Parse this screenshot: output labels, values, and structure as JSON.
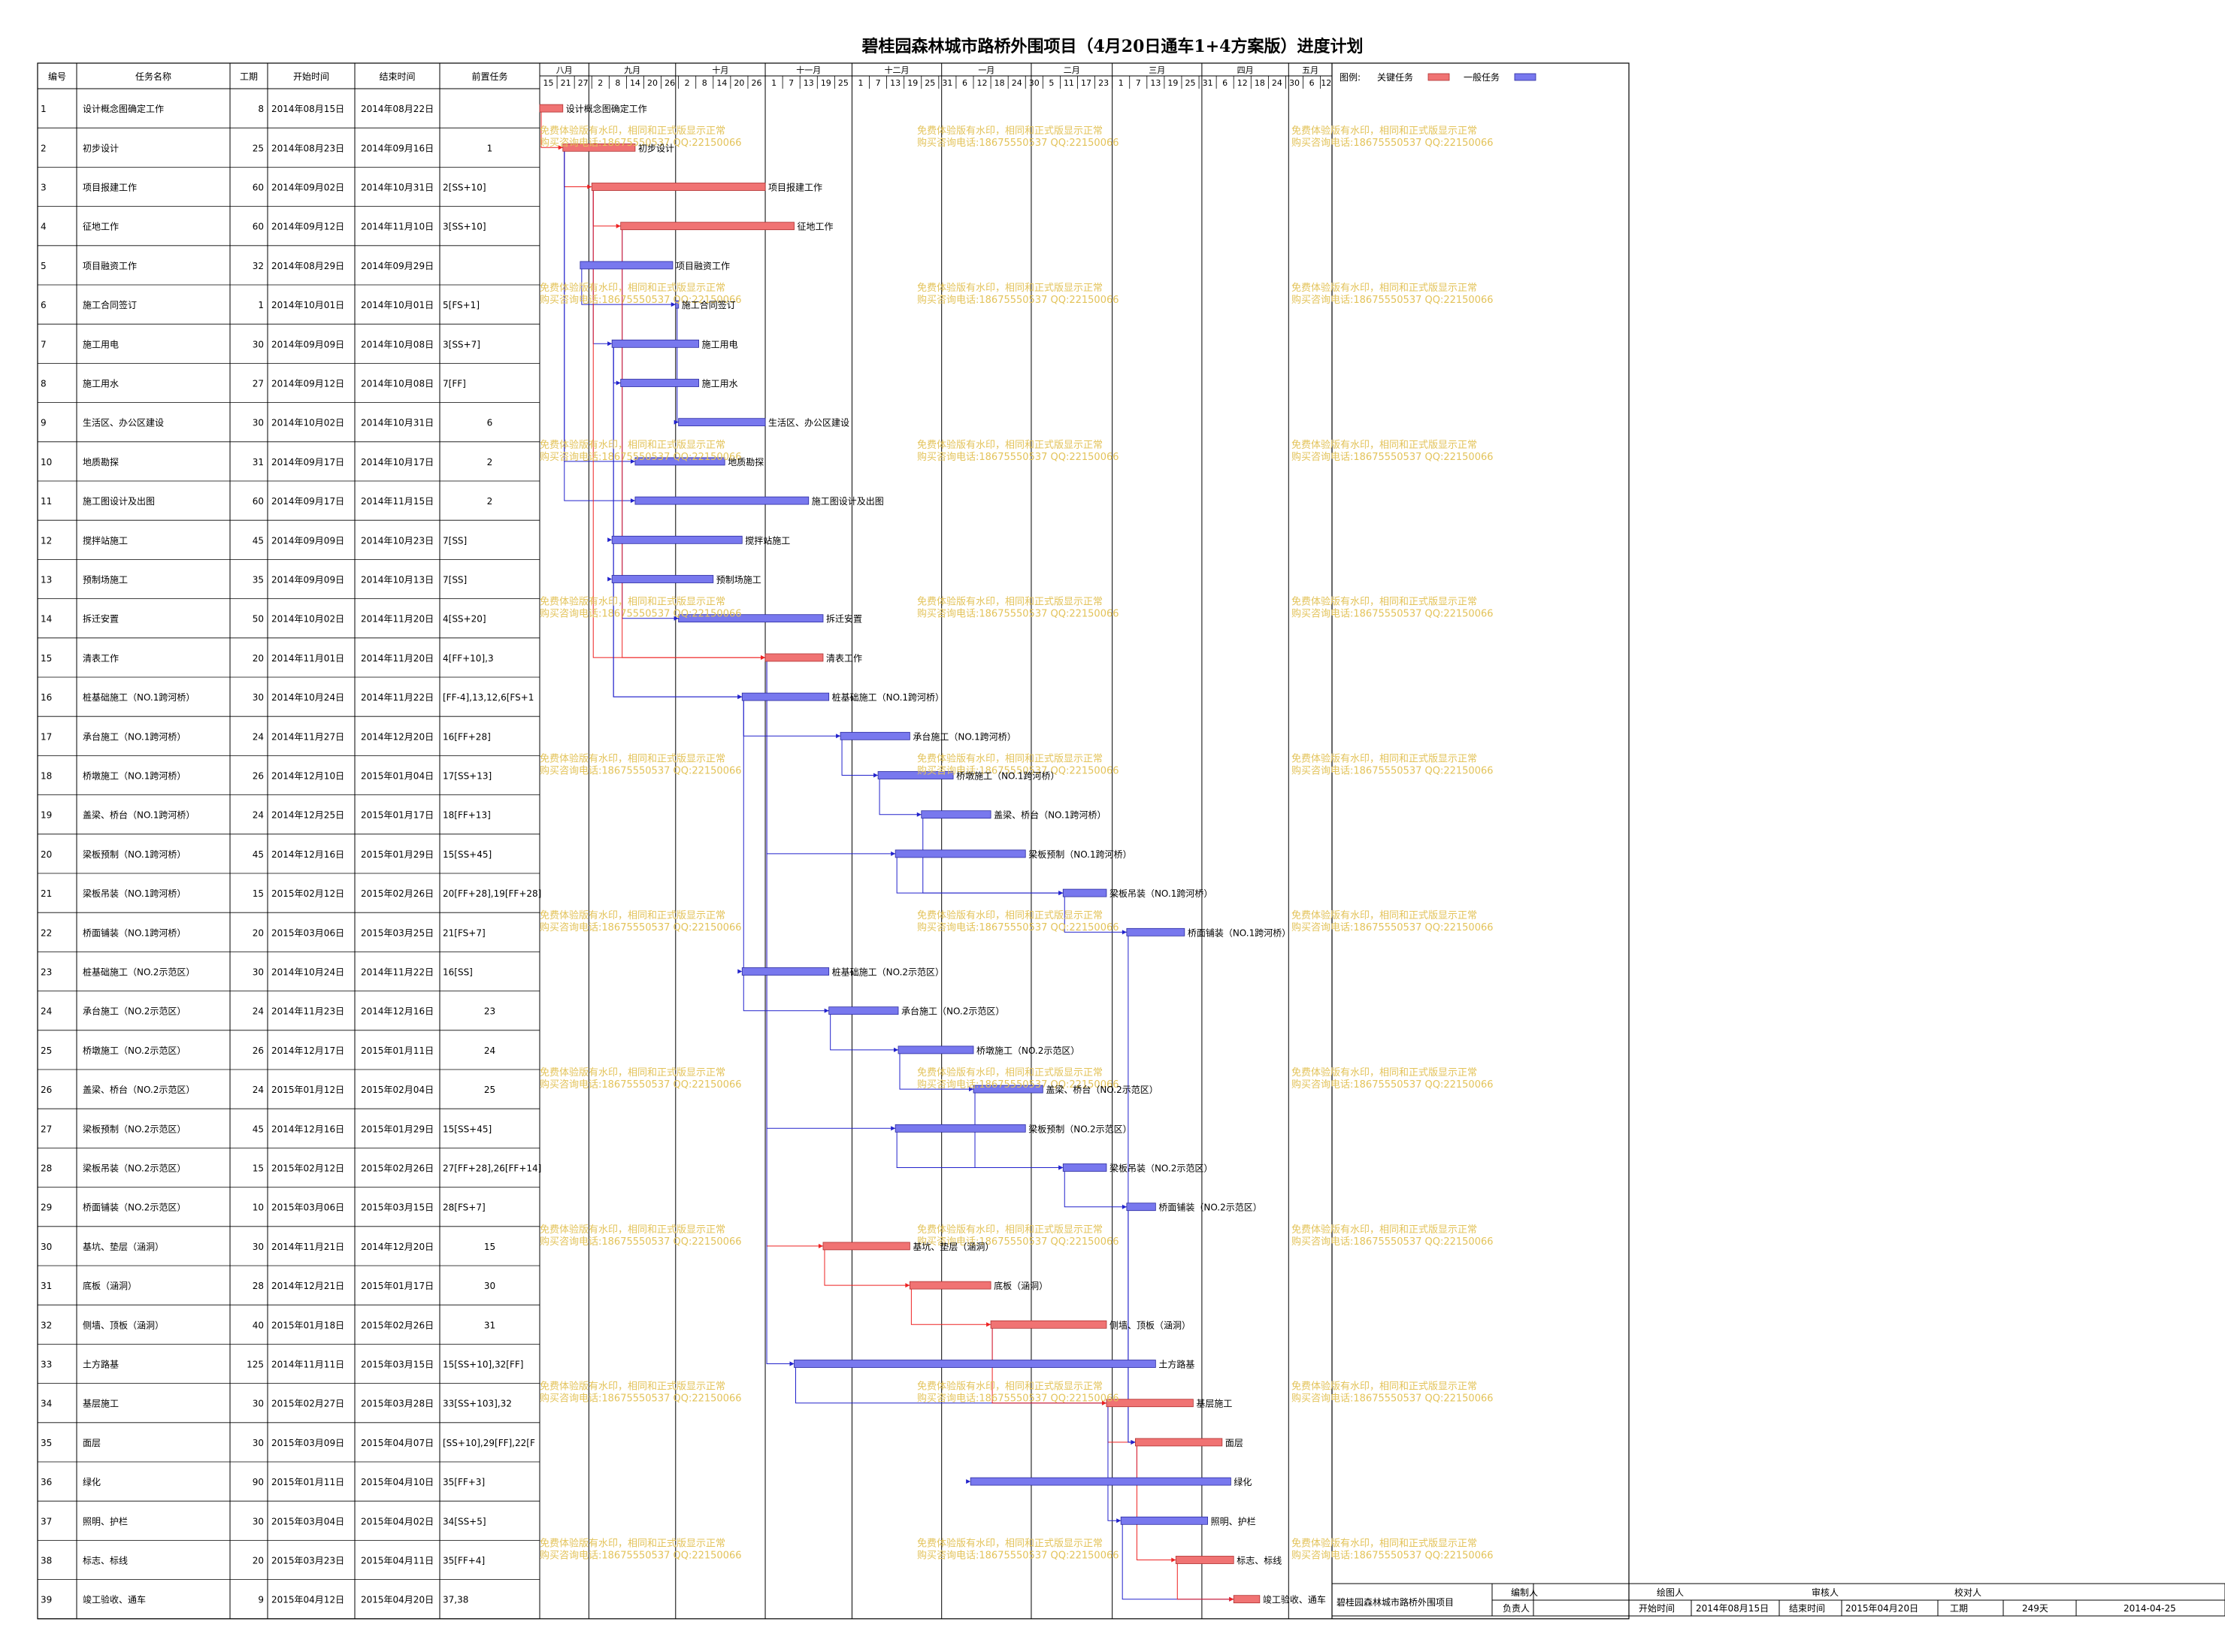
{
  "title": "碧桂园森林城市路桥外围项目（4月20日通车1+4方案版）进度计划",
  "table": {
    "headers": [
      "编号",
      "任务名称",
      "工期",
      "开始时间",
      "结束时间",
      "前置任务"
    ]
  },
  "legend": {
    "label": "图例:",
    "critical": "关键任务",
    "normal": "一般任务",
    "critical_color": "#f07373",
    "normal_color": "#7878ee"
  },
  "colors": {
    "critical": "#f07373",
    "normal": "#7878ee",
    "link_critical": "#ee2222",
    "link_normal": "#2222cc",
    "watermark": "#e3c35a"
  },
  "timeline": {
    "months": [
      "八月",
      "九月",
      "十月",
      "十一月",
      "十二月",
      "一月",
      "二月",
      "三月",
      "四月",
      "五月"
    ],
    "ticks": [
      "15",
      "21",
      "27",
      "2",
      "8",
      "14",
      "20",
      "26",
      "2",
      "8",
      "14",
      "20",
      "26",
      "1",
      "7",
      "13",
      "19",
      "25",
      "1",
      "7",
      "13",
      "19",
      "25",
      "31",
      "6",
      "12",
      "18",
      "24",
      "30",
      "5",
      "11",
      "17",
      "23",
      "1",
      "7",
      "13",
      "19",
      "25",
      "31",
      "6",
      "12",
      "18",
      "24",
      "30",
      "6",
      "12"
    ]
  },
  "watermark": {
    "line1": "免费体验版有水印，相同和正式版显示正常",
    "line2": "购买咨询电话:18675550537 QQ:22150066"
  },
  "chart_data": {
    "type": "gantt",
    "title": "碧桂园森林城市路桥外围项目（4月20日通车1+4方案版）进度计划",
    "x_range": [
      "2014-08-15",
      "2015-05-16"
    ],
    "tasks": [
      {
        "id": "1",
        "name": "设计概念图确定工作",
        "duration": "8",
        "start": "2014年08月15日",
        "end": "2014年08月22日",
        "pred": "",
        "critical": true,
        "s": "2014-08-15",
        "e": "2014-08-22"
      },
      {
        "id": "2",
        "name": "初步设计",
        "duration": "25",
        "start": "2014年08月23日",
        "end": "2014年09月16日",
        "pred": "1",
        "critical": true,
        "s": "2014-08-23",
        "e": "2014-09-16"
      },
      {
        "id": "3",
        "name": "项目报建工作",
        "duration": "60",
        "start": "2014年09月02日",
        "end": "2014年10月31日",
        "pred": "2[SS+10]",
        "critical": true,
        "s": "2014-09-02",
        "e": "2014-10-31"
      },
      {
        "id": "4",
        "name": "征地工作",
        "duration": "60",
        "start": "2014年09月12日",
        "end": "2014年11月10日",
        "pred": "3[SS+10]",
        "critical": true,
        "s": "2014-09-12",
        "e": "2014-11-10"
      },
      {
        "id": "5",
        "name": "项目融资工作",
        "duration": "32",
        "start": "2014年08月29日",
        "end": "2014年09月29日",
        "pred": "",
        "critical": false,
        "s": "2014-08-29",
        "e": "2014-09-29"
      },
      {
        "id": "6",
        "name": "施工合同签订",
        "duration": "1",
        "start": "2014年10月01日",
        "end": "2014年10月01日",
        "pred": "5[FS+1]",
        "critical": false,
        "s": "2014-10-01",
        "e": "2014-10-01"
      },
      {
        "id": "7",
        "name": "施工用电",
        "duration": "30",
        "start": "2014年09月09日",
        "end": "2014年10月08日",
        "pred": "3[SS+7]",
        "critical": false,
        "s": "2014-09-09",
        "e": "2014-10-08"
      },
      {
        "id": "8",
        "name": "施工用水",
        "duration": "27",
        "start": "2014年09月12日",
        "end": "2014年10月08日",
        "pred": "7[FF]",
        "critical": false,
        "s": "2014-09-12",
        "e": "2014-10-08"
      },
      {
        "id": "9",
        "name": "生活区、办公区建设",
        "duration": "30",
        "start": "2014年10月02日",
        "end": "2014年10月31日",
        "pred": "6",
        "critical": false,
        "s": "2014-10-02",
        "e": "2014-10-31"
      },
      {
        "id": "10",
        "name": "地质勘探",
        "duration": "31",
        "start": "2014年09月17日",
        "end": "2014年10月17日",
        "pred": "2",
        "critical": false,
        "s": "2014-09-17",
        "e": "2014-10-17"
      },
      {
        "id": "11",
        "name": "施工图设计及出图",
        "duration": "60",
        "start": "2014年09月17日",
        "end": "2014年11月15日",
        "pred": "2",
        "critical": false,
        "s": "2014-09-17",
        "e": "2014-11-15"
      },
      {
        "id": "12",
        "name": "搅拌站施工",
        "duration": "45",
        "start": "2014年09月09日",
        "end": "2014年10月23日",
        "pred": "7[SS]",
        "critical": false,
        "s": "2014-09-09",
        "e": "2014-10-23"
      },
      {
        "id": "13",
        "name": "预制场施工",
        "duration": "35",
        "start": "2014年09月09日",
        "end": "2014年10月13日",
        "pred": "7[SS]",
        "critical": false,
        "s": "2014-09-09",
        "e": "2014-10-13"
      },
      {
        "id": "14",
        "name": "拆迁安置",
        "duration": "50",
        "start": "2014年10月02日",
        "end": "2014年11月20日",
        "pred": "4[SS+20]",
        "critical": false,
        "s": "2014-10-02",
        "e": "2014-11-20"
      },
      {
        "id": "15",
        "name": "清表工作",
        "duration": "20",
        "start": "2014年11月01日",
        "end": "2014年11月20日",
        "pred": "4[FF+10],3",
        "critical": true,
        "s": "2014-11-01",
        "e": "2014-11-20"
      },
      {
        "id": "16",
        "name": "桩基础施工（NO.1跨河桥）",
        "duration": "30",
        "start": "2014年10月24日",
        "end": "2014年11月22日",
        "pred": "[FF-4],13,12,6[FS+1",
        "critical": false,
        "s": "2014-10-24",
        "e": "2014-11-22"
      },
      {
        "id": "17",
        "name": "承台施工（NO.1跨河桥）",
        "duration": "24",
        "start": "2014年11月27日",
        "end": "2014年12月20日",
        "pred": "16[FF+28]",
        "critical": false,
        "s": "2014-11-27",
        "e": "2014-12-20"
      },
      {
        "id": "18",
        "name": "桥墩施工（NO.1跨河桥）",
        "duration": "26",
        "start": "2014年12月10日",
        "end": "2015年01月04日",
        "pred": "17[SS+13]",
        "critical": false,
        "s": "2014-12-10",
        "e": "2015-01-04"
      },
      {
        "id": "19",
        "name": "盖梁、桥台（NO.1跨河桥）",
        "duration": "24",
        "start": "2014年12月25日",
        "end": "2015年01月17日",
        "pred": "18[FF+13]",
        "critical": false,
        "s": "2014-12-25",
        "e": "2015-01-17"
      },
      {
        "id": "20",
        "name": "梁板预制（NO.1跨河桥）",
        "duration": "45",
        "start": "2014年12月16日",
        "end": "2015年01月29日",
        "pred": "15[SS+45]",
        "critical": false,
        "s": "2014-12-16",
        "e": "2015-01-29"
      },
      {
        "id": "21",
        "name": "梁板吊装（NO.1跨河桥）",
        "duration": "15",
        "start": "2015年02月12日",
        "end": "2015年02月26日",
        "pred": "20[FF+28],19[FF+28]",
        "critical": false,
        "s": "2015-02-12",
        "e": "2015-02-26"
      },
      {
        "id": "22",
        "name": "桥面铺装（NO.1跨河桥）",
        "duration": "20",
        "start": "2015年03月06日",
        "end": "2015年03月25日",
        "pred": "21[FS+7]",
        "critical": false,
        "s": "2015-03-06",
        "e": "2015-03-25"
      },
      {
        "id": "23",
        "name": "桩基础施工（NO.2示范区）",
        "duration": "30",
        "start": "2014年10月24日",
        "end": "2014年11月22日",
        "pred": "16[SS]",
        "critical": false,
        "s": "2014-10-24",
        "e": "2014-11-22"
      },
      {
        "id": "24",
        "name": "承台施工（NO.2示范区）",
        "duration": "24",
        "start": "2014年11月23日",
        "end": "2014年12月16日",
        "pred": "23",
        "critical": false,
        "s": "2014-11-23",
        "e": "2014-12-16"
      },
      {
        "id": "25",
        "name": "桥墩施工（NO.2示范区）",
        "duration": "26",
        "start": "2014年12月17日",
        "end": "2015年01月11日",
        "pred": "24",
        "critical": false,
        "s": "2014-12-17",
        "e": "2015-01-11"
      },
      {
        "id": "26",
        "name": "盖梁、桥台（NO.2示范区）",
        "duration": "24",
        "start": "2015年01月12日",
        "end": "2015年02月04日",
        "pred": "25",
        "critical": false,
        "s": "2015-01-12",
        "e": "2015-02-04"
      },
      {
        "id": "27",
        "name": "梁板预制（NO.2示范区）",
        "duration": "45",
        "start": "2014年12月16日",
        "end": "2015年01月29日",
        "pred": "15[SS+45]",
        "critical": false,
        "s": "2014-12-16",
        "e": "2015-01-29"
      },
      {
        "id": "28",
        "name": "梁板吊装（NO.2示范区）",
        "duration": "15",
        "start": "2015年02月12日",
        "end": "2015年02月26日",
        "pred": "27[FF+28],26[FF+14]",
        "critical": false,
        "s": "2015-02-12",
        "e": "2015-02-26"
      },
      {
        "id": "29",
        "name": "桥面铺装（NO.2示范区）",
        "duration": "10",
        "start": "2015年03月06日",
        "end": "2015年03月15日",
        "pred": "28[FS+7]",
        "critical": false,
        "s": "2015-03-06",
        "e": "2015-03-15"
      },
      {
        "id": "30",
        "name": "基坑、垫层（涵洞）",
        "duration": "30",
        "start": "2014年11月21日",
        "end": "2014年12月20日",
        "pred": "15",
        "critical": true,
        "s": "2014-11-21",
        "e": "2014-12-20"
      },
      {
        "id": "31",
        "name": "底板（涵洞）",
        "duration": "28",
        "start": "2014年12月21日",
        "end": "2015年01月17日",
        "pred": "30",
        "critical": true,
        "s": "2014-12-21",
        "e": "2015-01-17"
      },
      {
        "id": "32",
        "name": "侧墙、顶板（涵洞）",
        "duration": "40",
        "start": "2015年01月18日",
        "end": "2015年02月26日",
        "pred": "31",
        "critical": true,
        "s": "2015-01-18",
        "e": "2015-02-26"
      },
      {
        "id": "33",
        "name": "土方路基",
        "duration": "125",
        "start": "2014年11月11日",
        "end": "2015年03月15日",
        "pred": "15[SS+10],32[FF]",
        "critical": false,
        "s": "2014-11-11",
        "e": "2015-03-15"
      },
      {
        "id": "34",
        "name": "基层施工",
        "duration": "30",
        "start": "2015年02月27日",
        "end": "2015年03月28日",
        "pred": "33[SS+103],32",
        "critical": true,
        "s": "2015-02-27",
        "e": "2015-03-28"
      },
      {
        "id": "35",
        "name": "面层",
        "duration": "30",
        "start": "2015年03月09日",
        "end": "2015年04月07日",
        "pred": "[SS+10],29[FF],22[F",
        "critical": true,
        "s": "2015-03-09",
        "e": "2015-04-07"
      },
      {
        "id": "36",
        "name": "绿化",
        "duration": "90",
        "start": "2015年01月11日",
        "end": "2015年04月10日",
        "pred": "35[FF+3]",
        "critical": false,
        "s": "2015-01-11",
        "e": "2015-04-10"
      },
      {
        "id": "37",
        "name": "照明、护栏",
        "duration": "30",
        "start": "2015年03月04日",
        "end": "2015年04月02日",
        "pred": "34[SS+5]",
        "critical": false,
        "s": "2015-03-04",
        "e": "2015-04-02"
      },
      {
        "id": "38",
        "name": "标志、标线",
        "duration": "20",
        "start": "2015年03月23日",
        "end": "2015年04月11日",
        "pred": "35[FF+4]",
        "critical": true,
        "s": "2015-03-23",
        "e": "2015-04-11"
      },
      {
        "id": "39",
        "name": "竣工验收、通车",
        "duration": "9",
        "start": "2015年04月12日",
        "end": "2015年04月20日",
        "pred": "37,38",
        "critical": true,
        "s": "2015-04-12",
        "e": "2015-04-20"
      }
    ]
  },
  "footer": {
    "project": "碧桂园森林城市路桥外围项目",
    "labels": {
      "compiler": "编制人",
      "drawer": "绘图人",
      "reviewer": "审核人",
      "checker": "校对人",
      "owner": "负责人",
      "start": "开始时间",
      "end": "结束时间",
      "duration": "工期"
    },
    "start_value": "2014年08月15日",
    "end_value": "2015年04月20日",
    "duration_value": "249天",
    "date": "2014-04-25"
  }
}
